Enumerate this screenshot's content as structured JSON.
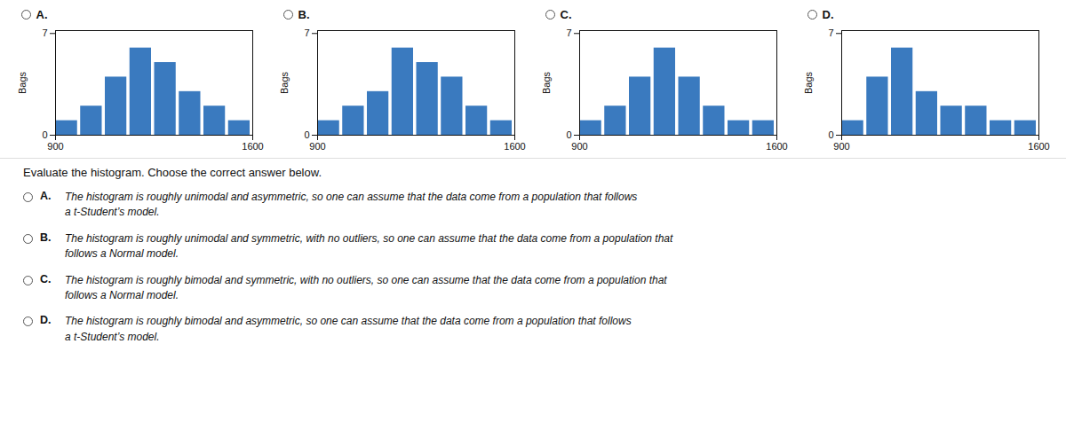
{
  "chart_data": [
    {
      "type": "histogram",
      "title": "A.",
      "bins": [
        900,
        987.5,
        1075,
        1162.5,
        1250,
        1337.5,
        1425,
        1512.5,
        1600
      ],
      "values": [
        1,
        2,
        4,
        6,
        5,
        3,
        2,
        1
      ],
      "color": "#3a7abf",
      "xlim": [
        900,
        1600
      ],
      "xticks": [
        900,
        1600
      ],
      "ylim": [
        0,
        7.2
      ],
      "yticks": [
        0,
        7
      ],
      "ylabel": "Bags"
    },
    {
      "type": "histogram",
      "title": "B.",
      "bins": [
        900,
        987.5,
        1075,
        1162.5,
        1250,
        1337.5,
        1425,
        1512.5,
        1600
      ],
      "values": [
        1,
        2,
        3,
        6,
        5,
        4,
        2,
        1
      ],
      "color": "#3a7abf",
      "xlim": [
        900,
        1600
      ],
      "xticks": [
        900,
        1600
      ],
      "ylim": [
        0,
        7.2
      ],
      "yticks": [
        0,
        7
      ],
      "ylabel": "Bags"
    },
    {
      "type": "histogram",
      "title": "C.",
      "bins": [
        900,
        987.5,
        1075,
        1162.5,
        1250,
        1337.5,
        1425,
        1512.5,
        1600
      ],
      "values": [
        1,
        2,
        4,
        6,
        4,
        2,
        1,
        1
      ],
      "color": "#3a7abf",
      "xlim": [
        900,
        1600
      ],
      "xticks": [
        900,
        1600
      ],
      "ylim": [
        0,
        7.2
      ],
      "yticks": [
        0,
        7
      ],
      "ylabel": "Bags"
    },
    {
      "type": "histogram",
      "title": "D.",
      "bins": [
        900,
        987.5,
        1075,
        1162.5,
        1250,
        1337.5,
        1425,
        1512.5,
        1600
      ],
      "values": [
        1,
        4,
        6,
        3,
        2,
        2,
        1,
        1
      ],
      "color": "#3a7abf",
      "xlim": [
        900,
        1600
      ],
      "xticks": [
        900,
        1600
      ],
      "ylim": [
        0,
        7.2
      ],
      "yticks": [
        0,
        7
      ],
      "ylabel": "Bags"
    }
  ],
  "question": "Evaluate the histogram. Choose the correct answer below.",
  "options": [
    {
      "letter": "A.",
      "text": "The histogram is roughly unimodal and asymmetric, so one can assume that the data come from a population that follows\na t-Student’s model."
    },
    {
      "letter": "B.",
      "text": "The histogram is roughly unimodal and symmetric, with no outliers, so one can assume that the data come from a population that\nfollows a Normal model."
    },
    {
      "letter": "C.",
      "text": "The histogram is roughly bimodal and symmetric, with no outliers, so one can assume that the data come from a population that\nfollows a Normal model."
    },
    {
      "letter": "D.",
      "text": "The histogram is roughly bimodal and asymmetric, so one can assume that the data come from a population that follows\na t-Student’s model."
    }
  ]
}
